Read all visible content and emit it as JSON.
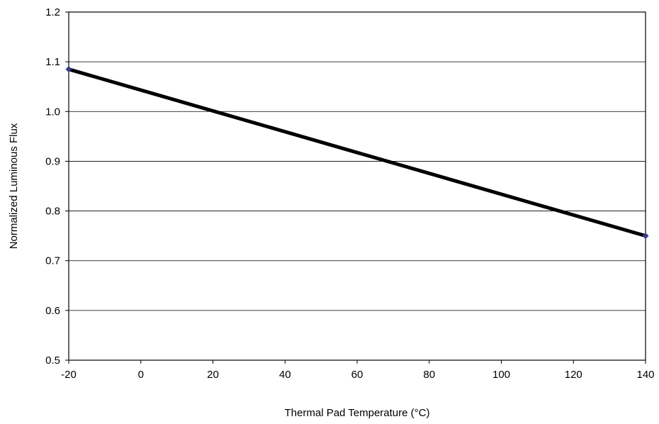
{
  "chart_data": {
    "type": "line",
    "title": "",
    "xlabel": "Thermal Pad Temperature (°C)",
    "ylabel": "Normalized Luminous Flux",
    "xlim": [
      -20,
      140
    ],
    "ylim": [
      0.5,
      1.2
    ],
    "x_ticks": [
      "-20",
      "0",
      "20",
      "40",
      "60",
      "80",
      "100",
      "120",
      "140"
    ],
    "y_ticks": [
      "0.5",
      "0.6",
      "0.7",
      "0.8",
      "0.9",
      "1.0",
      "1.1",
      "1.2"
    ],
    "grid": "horizontal",
    "series": [
      {
        "x": [
          -20,
          140
        ],
        "y": [
          1.085,
          0.75
        ],
        "line_color": "#000000",
        "marker_color": "#3a3a8c"
      }
    ]
  }
}
